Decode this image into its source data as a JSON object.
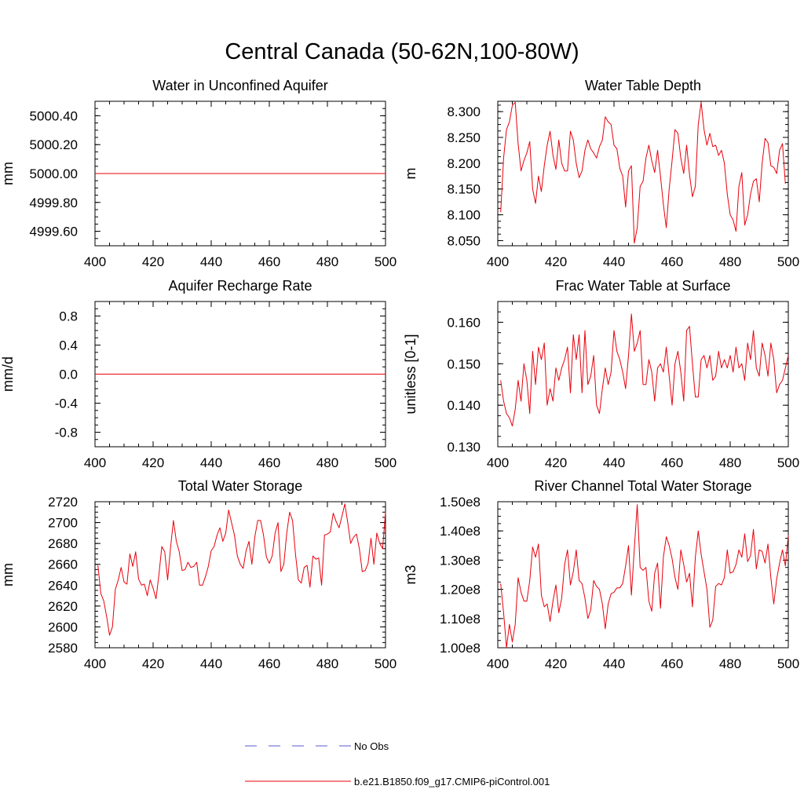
{
  "title": "Central Canada (50-62N,100-80W)",
  "colors": {
    "model": "#e8000b",
    "obs": "#5a5acd",
    "axis": "#000000"
  },
  "legend": {
    "obs_label": "No Obs",
    "model_label": "b.e21.B1850.f09_g17.CMIP6-piControl.001"
  },
  "chart_data": [
    {
      "type": "line",
      "title": "Water in Unconfined Aquifer",
      "xlabel": "",
      "ylabel": "mm",
      "xlim": [
        400,
        500
      ],
      "ylim": [
        4999.5,
        5000.5
      ],
      "xticks": [
        400,
        420,
        440,
        460,
        480,
        500
      ],
      "xticklabels": [
        "400",
        "420",
        "440",
        "460",
        "480",
        "500"
      ],
      "yticks": [
        4999.6,
        4999.8,
        5000.0,
        5000.2,
        5000.4
      ],
      "yticklabels": [
        "4999.60",
        "4999.80",
        "5000.00",
        "5000.20",
        "5000.40"
      ],
      "x_start": 401,
      "series": [
        {
          "name": "b.e21.B1850.f09_g17.CMIP6-piControl.001",
          "constant": 5000.0
        }
      ]
    },
    {
      "type": "line",
      "title": "Water Table Depth",
      "xlabel": "",
      "ylabel": "m",
      "xlim": [
        400,
        500
      ],
      "ylim": [
        8.04,
        8.32
      ],
      "xticks": [
        400,
        420,
        440,
        460,
        480,
        500
      ],
      "xticklabels": [
        "400",
        "420",
        "440",
        "460",
        "480",
        "500"
      ],
      "yticks": [
        8.05,
        8.1,
        8.15,
        8.2,
        8.25,
        8.3
      ],
      "yticklabels": [
        "8.050",
        "8.100",
        "8.150",
        "8.200",
        "8.250",
        "8.300"
      ],
      "x_start": 401,
      "series": [
        {
          "name": "b.e21.B1850.f09_g17.CMIP6-piControl.001",
          "values": [
            8.105,
            8.21,
            8.265,
            8.28,
            8.312,
            8.318,
            8.238,
            8.185,
            8.205,
            8.22,
            8.242,
            8.15,
            8.122,
            8.175,
            8.145,
            8.195,
            8.235,
            8.262,
            8.215,
            8.188,
            8.245,
            8.2,
            8.185,
            8.185,
            8.262,
            8.245,
            8.2,
            8.172,
            8.185,
            8.225,
            8.245,
            8.228,
            8.22,
            8.21,
            8.232,
            8.245,
            8.29,
            8.28,
            8.275,
            8.235,
            8.228,
            8.19,
            8.175,
            8.115,
            8.185,
            8.195,
            8.045,
            8.075,
            8.155,
            8.165,
            8.21,
            8.235,
            8.205,
            8.182,
            8.225,
            8.175,
            8.12,
            8.075,
            8.15,
            8.205,
            8.265,
            8.258,
            8.21,
            8.18,
            8.235,
            8.178,
            8.135,
            8.155,
            8.275,
            8.318,
            8.265,
            8.235,
            8.258,
            8.232,
            8.235,
            8.215,
            8.225,
            8.2,
            8.14,
            8.1,
            8.09,
            8.068,
            8.155,
            8.182,
            8.08,
            8.1,
            8.14,
            8.165,
            8.17,
            8.125,
            8.2,
            8.248,
            8.24,
            8.195,
            8.192,
            8.18,
            8.225,
            8.238,
            8.16
          ]
        }
      ]
    },
    {
      "type": "line",
      "title": "Aquifer Recharge Rate",
      "xlabel": "",
      "ylabel": "mm/d",
      "xlim": [
        400,
        500
      ],
      "ylim": [
        -1,
        1
      ],
      "xticks": [
        400,
        420,
        440,
        460,
        480,
        500
      ],
      "xticklabels": [
        "400",
        "420",
        "440",
        "460",
        "480",
        "500"
      ],
      "yticks": [
        -0.8,
        -0.4,
        0.0,
        0.4,
        0.8
      ],
      "yticklabels": [
        "-0.8",
        "-0.4",
        "0.0",
        "0.4",
        "0.8"
      ],
      "x_start": 401,
      "series": [
        {
          "name": "b.e21.B1850.f09_g17.CMIP6-piControl.001",
          "constant": 0.0
        }
      ]
    },
    {
      "type": "line",
      "title": "Frac Water Table at Surface",
      "xlabel": "",
      "ylabel": "unitless [0-1]",
      "xlim": [
        400,
        500
      ],
      "ylim": [
        0.13,
        0.165
      ],
      "xticks": [
        400,
        420,
        440,
        460,
        480,
        500
      ],
      "xticklabels": [
        "400",
        "420",
        "440",
        "460",
        "480",
        "500"
      ],
      "yticks": [
        0.13,
        0.14,
        0.15,
        0.16
      ],
      "yticklabels": [
        "0.130",
        "0.140",
        "0.150",
        "0.160"
      ],
      "x_start": 401,
      "series": [
        {
          "name": "b.e21.B1850.f09_g17.CMIP6-piControl.001",
          "values": [
            0.146,
            0.141,
            0.138,
            0.137,
            0.135,
            0.139,
            0.146,
            0.141,
            0.15,
            0.146,
            0.138,
            0.153,
            0.145,
            0.154,
            0.151,
            0.155,
            0.14,
            0.144,
            0.141,
            0.149,
            0.146,
            0.149,
            0.151,
            0.154,
            0.143,
            0.157,
            0.151,
            0.157,
            0.143,
            0.158,
            0.145,
            0.147,
            0.152,
            0.14,
            0.138,
            0.144,
            0.149,
            0.145,
            0.148,
            0.158,
            0.153,
            0.151,
            0.148,
            0.144,
            0.152,
            0.162,
            0.153,
            0.155,
            0.158,
            0.145,
            0.145,
            0.151,
            0.148,
            0.141,
            0.149,
            0.15,
            0.148,
            0.154,
            0.147,
            0.14,
            0.15,
            0.153,
            0.148,
            0.141,
            0.158,
            0.159,
            0.15,
            0.142,
            0.142,
            0.151,
            0.152,
            0.149,
            0.152,
            0.146,
            0.147,
            0.153,
            0.149,
            0.151,
            0.149,
            0.152,
            0.148,
            0.154,
            0.149,
            0.15,
            0.146,
            0.155,
            0.151,
            0.158,
            0.149,
            0.147,
            0.155,
            0.152,
            0.147,
            0.155,
            0.151,
            0.143,
            0.145,
            0.146,
            0.149,
            0.152
          ]
        }
      ]
    },
    {
      "type": "line",
      "title": "Total Water Storage",
      "xlabel": "",
      "ylabel": "mm",
      "xlim": [
        400,
        500
      ],
      "ylim": [
        2580,
        2720
      ],
      "xticks": [
        400,
        420,
        440,
        460,
        480,
        500
      ],
      "xticklabels": [
        "400",
        "420",
        "440",
        "460",
        "480",
        "500"
      ],
      "yticks": [
        2580,
        2600,
        2620,
        2640,
        2660,
        2680,
        2700,
        2720
      ],
      "yticklabels": [
        "2580",
        "2600",
        "2620",
        "2640",
        "2660",
        "2680",
        "2700",
        "2720"
      ],
      "x_start": 401,
      "series": [
        {
          "name": "b.e21.B1850.f09_g17.CMIP6-piControl.001",
          "values": [
            2659,
            2632,
            2625,
            2610,
            2592,
            2600,
            2636,
            2645,
            2657,
            2643,
            2641,
            2670,
            2658,
            2672,
            2646,
            2640,
            2641,
            2630,
            2645,
            2637,
            2627,
            2650,
            2677,
            2672,
            2645,
            2676,
            2702,
            2682,
            2672,
            2654,
            2655,
            2662,
            2657,
            2658,
            2662,
            2640,
            2640,
            2648,
            2658,
            2673,
            2677,
            2688,
            2695,
            2682,
            2690,
            2712,
            2700,
            2688,
            2668,
            2660,
            2656,
            2673,
            2682,
            2660,
            2686,
            2702,
            2702,
            2688,
            2667,
            2661,
            2668,
            2690,
            2700,
            2653,
            2660,
            2690,
            2710,
            2702,
            2670,
            2645,
            2642,
            2657,
            2659,
            2638,
            2668,
            2665,
            2666,
            2640,
            2688,
            2689,
            2691,
            2709,
            2701,
            2695,
            2706,
            2718,
            2700,
            2680,
            2686,
            2689,
            2675,
            2653,
            2654,
            2661,
            2685,
            2660,
            2690,
            2680,
            2675,
            2710
          ]
        }
      ]
    },
    {
      "type": "line",
      "title": "River Channel Total Water Storage",
      "xlabel": "",
      "ylabel": "m3",
      "xlim": [
        400,
        500
      ],
      "ylim": [
        100000000,
        150000000
      ],
      "xticks": [
        400,
        420,
        440,
        460,
        480,
        500
      ],
      "xticklabels": [
        "400",
        "420",
        "440",
        "460",
        "480",
        "500"
      ],
      "yticks": [
        100000000,
        110000000,
        120000000,
        130000000,
        140000000,
        150000000
      ],
      "yticklabels": [
        "1.00e8",
        "1.10e8",
        "1.20e8",
        "1.30e8",
        "1.40e8",
        "1.50e8"
      ],
      "x_start": 401,
      "series": [
        {
          "name": "b.e21.B1850.f09_g17.CMIP6-piControl.001",
          "values": [
            122000000,
            112000000,
            100000000,
            108000000,
            102000000,
            108000000,
            124000000,
            119000000,
            116000000,
            116000000,
            123000000,
            134500000,
            131000000,
            135500000,
            118000000,
            114000000,
            115000000,
            109000000,
            116000000,
            121500000,
            112000000,
            117000000,
            128500000,
            133500000,
            121500000,
            126000000,
            133500000,
            123000000,
            122000000,
            117000000,
            110000000,
            113000000,
            123000000,
            121000000,
            120000000,
            115000000,
            106500000,
            115000000,
            118500000,
            119000000,
            120500000,
            120500000,
            122000000,
            128000000,
            135000000,
            118000000,
            134000000,
            149000000,
            127500000,
            126500000,
            127500000,
            116000000,
            112500000,
            125500000,
            129000000,
            113500000,
            131000000,
            138000000,
            135000000,
            130500000,
            124000000,
            120000000,
            133500000,
            128500000,
            122500000,
            125500000,
            114000000,
            131000000,
            140000000,
            132000000,
            126000000,
            120000000,
            107000000,
            109500000,
            121000000,
            122000000,
            121500000,
            124000000,
            133500000,
            125500000,
            126000000,
            128500000,
            133500000,
            131000000,
            139000000,
            129500000,
            131500000,
            140500000,
            127000000,
            133500000,
            133000000,
            129000000,
            135500000,
            124000000,
            115000000,
            123500000,
            129000000,
            133500000,
            128000000,
            138500000
          ]
        }
      ]
    }
  ]
}
